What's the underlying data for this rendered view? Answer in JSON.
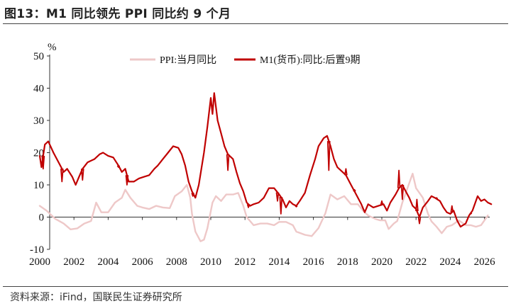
{
  "figure": {
    "title": "图13：M1 同比领先 PPI 同比约 9 个月",
    "source": "资料来源：iFind，国联民生证券研究所"
  },
  "colors": {
    "ppi": "#eec8c8",
    "m1": "#c00000",
    "axis": "#333333"
  },
  "chart_data": {
    "type": "line",
    "ylabel": "%",
    "ylim": [
      -10,
      50
    ],
    "yticks": [
      -10,
      0,
      10,
      20,
      30,
      40,
      50
    ],
    "xlim": [
      2000,
      2027
    ],
    "xticks": [
      2000,
      2002,
      2004,
      2006,
      2008,
      2010,
      2012,
      2014,
      2016,
      2018,
      2020,
      2022,
      2024,
      2026
    ],
    "legend_position": "top",
    "grid": false,
    "series": [
      {
        "name": "PPI:当月同比",
        "color": "#eec8c8",
        "points": [
          [
            2000.0,
            3.5
          ],
          [
            2000.4,
            2.0
          ],
          [
            2000.9,
            -0.5
          ],
          [
            2001.4,
            -2.0
          ],
          [
            2001.8,
            -3.8
          ],
          [
            2002.2,
            -3.5
          ],
          [
            2002.6,
            -2.0
          ],
          [
            2003.0,
            -1.2
          ],
          [
            2003.3,
            4.5
          ],
          [
            2003.6,
            1.5
          ],
          [
            2004.0,
            1.5
          ],
          [
            2004.4,
            4.5
          ],
          [
            2004.8,
            6.0
          ],
          [
            2005.0,
            8.5
          ],
          [
            2005.3,
            6.0
          ],
          [
            2005.7,
            3.5
          ],
          [
            2006.0,
            3.0
          ],
          [
            2006.4,
            2.5
          ],
          [
            2006.8,
            3.5
          ],
          [
            2007.2,
            3.0
          ],
          [
            2007.6,
            2.8
          ],
          [
            2007.9,
            6.5
          ],
          [
            2008.3,
            8.0
          ],
          [
            2008.6,
            10.0
          ],
          [
            2008.8,
            6.0
          ],
          [
            2008.9,
            1.0
          ],
          [
            2009.1,
            -4.5
          ],
          [
            2009.4,
            -7.5
          ],
          [
            2009.6,
            -7.0
          ],
          [
            2009.8,
            -3.5
          ],
          [
            2010.1,
            4.5
          ],
          [
            2010.3,
            6.5
          ],
          [
            2010.6,
            5.0
          ],
          [
            2010.9,
            7.0
          ],
          [
            2011.3,
            7.0
          ],
          [
            2011.6,
            7.5
          ],
          [
            2011.9,
            3.5
          ],
          [
            2012.1,
            0.0
          ],
          [
            2012.5,
            -2.5
          ],
          [
            2012.9,
            -2.0
          ],
          [
            2013.3,
            -2.0
          ],
          [
            2013.7,
            -2.5
          ],
          [
            2014.0,
            -1.5
          ],
          [
            2014.4,
            -1.5
          ],
          [
            2014.8,
            -2.5
          ],
          [
            2015.0,
            -4.5
          ],
          [
            2015.5,
            -5.5
          ],
          [
            2015.9,
            -5.9
          ],
          [
            2016.3,
            -3.4
          ],
          [
            2016.7,
            1.2
          ],
          [
            2017.0,
            7.0
          ],
          [
            2017.4,
            5.5
          ],
          [
            2017.8,
            6.5
          ],
          [
            2018.2,
            4.0
          ],
          [
            2018.6,
            4.0
          ],
          [
            2018.9,
            2.0
          ],
          [
            2019.2,
            0.5
          ],
          [
            2019.6,
            -0.5
          ],
          [
            2019.9,
            -1.0
          ],
          [
            2020.2,
            -1.0
          ],
          [
            2020.4,
            -3.7
          ],
          [
            2020.7,
            -2.0
          ],
          [
            2020.9,
            -1.2
          ],
          [
            2021.2,
            4.5
          ],
          [
            2021.5,
            9.0
          ],
          [
            2021.8,
            13.5
          ],
          [
            2022.0,
            9.0
          ],
          [
            2022.4,
            6.0
          ],
          [
            2022.7,
            1.0
          ],
          [
            2022.9,
            -1.3
          ],
          [
            2023.2,
            -3.0
          ],
          [
            2023.5,
            -5.0
          ],
          [
            2023.8,
            -3.0
          ],
          [
            2024.1,
            -2.5
          ],
          [
            2024.5,
            -1.0
          ],
          [
            2024.9,
            -2.5
          ],
          [
            2025.2,
            -2.5
          ],
          [
            2025.5,
            -3.0
          ],
          [
            2025.8,
            -2.5
          ],
          [
            2026.0,
            -1.0
          ],
          [
            2026.2,
            0.5
          ]
        ]
      },
      {
        "name": "M1(货币):同比:后置9期",
        "color": "#c00000",
        "points": [
          [
            2000.0,
            19.0
          ],
          [
            2000.1,
            15.5
          ],
          [
            2000.3,
            22.5
          ],
          [
            2000.5,
            23.5
          ],
          [
            2000.8,
            20.0
          ],
          [
            2001.1,
            17.0
          ],
          [
            2001.4,
            14.0
          ],
          [
            2001.6,
            15.0
          ],
          [
            2001.9,
            12.5
          ],
          [
            2002.1,
            10.0
          ],
          [
            2002.3,
            12.5
          ],
          [
            2002.5,
            15.0
          ],
          [
            2002.8,
            17.0
          ],
          [
            2003.2,
            18.0
          ],
          [
            2003.5,
            19.5
          ],
          [
            2003.7,
            20.0
          ],
          [
            2004.0,
            19.0
          ],
          [
            2004.3,
            18.5
          ],
          [
            2004.6,
            16.0
          ],
          [
            2004.8,
            14.0
          ],
          [
            2005.0,
            15.0
          ],
          [
            2005.2,
            11.0
          ],
          [
            2005.5,
            11.0
          ],
          [
            2005.8,
            12.0
          ],
          [
            2006.1,
            12.5
          ],
          [
            2006.4,
            13.0
          ],
          [
            2006.7,
            15.0
          ],
          [
            2006.9,
            16.0
          ],
          [
            2007.2,
            18.0
          ],
          [
            2007.5,
            20.0
          ],
          [
            2007.8,
            22.0
          ],
          [
            2008.1,
            21.5
          ],
          [
            2008.3,
            19.5
          ],
          [
            2008.5,
            16.0
          ],
          [
            2008.7,
            11.0
          ],
          [
            2008.9,
            8.0
          ],
          [
            2009.1,
            6.0
          ],
          [
            2009.3,
            10.0
          ],
          [
            2009.6,
            20.0
          ],
          [
            2009.8,
            28.0
          ],
          [
            2010.0,
            37.0
          ],
          [
            2010.1,
            32.0
          ],
          [
            2010.2,
            38.5
          ],
          [
            2010.4,
            30.0
          ],
          [
            2010.6,
            26.0
          ],
          [
            2010.8,
            22.0
          ],
          [
            2011.0,
            19.5
          ],
          [
            2011.3,
            18.0
          ],
          [
            2011.5,
            14.0
          ],
          [
            2011.7,
            10.5
          ],
          [
            2011.9,
            8.0
          ],
          [
            2012.1,
            4.5
          ],
          [
            2012.3,
            3.5
          ],
          [
            2012.5,
            4.0
          ],
          [
            2012.8,
            4.5
          ],
          [
            2013.1,
            6.0
          ],
          [
            2013.4,
            9.0
          ],
          [
            2013.7,
            9.0
          ],
          [
            2014.0,
            7.0
          ],
          [
            2014.2,
            5.5
          ],
          [
            2014.4,
            3.0
          ],
          [
            2014.6,
            5.0
          ],
          [
            2014.8,
            4.0
          ],
          [
            2015.0,
            3.5
          ],
          [
            2015.2,
            5.0
          ],
          [
            2015.5,
            7.5
          ],
          [
            2015.8,
            13.0
          ],
          [
            2016.1,
            18.0
          ],
          [
            2016.3,
            22.0
          ],
          [
            2016.6,
            24.5
          ],
          [
            2016.8,
            25.2
          ],
          [
            2017.0,
            22.0
          ],
          [
            2017.2,
            18.0
          ],
          [
            2017.4,
            15.5
          ],
          [
            2017.7,
            14.0
          ],
          [
            2017.9,
            13.0
          ],
          [
            2018.2,
            10.0
          ],
          [
            2018.5,
            7.0
          ],
          [
            2018.8,
            4.0
          ],
          [
            2019.0,
            1.5
          ],
          [
            2019.2,
            4.0
          ],
          [
            2019.5,
            3.0
          ],
          [
            2019.8,
            3.5
          ],
          [
            2020.1,
            4.0
          ],
          [
            2020.3,
            2.0
          ],
          [
            2020.5,
            4.5
          ],
          [
            2020.8,
            7.0
          ],
          [
            2021.0,
            9.0
          ],
          [
            2021.2,
            10.0
          ],
          [
            2021.4,
            8.0
          ],
          [
            2021.6,
            6.0
          ],
          [
            2021.8,
            3.5
          ],
          [
            2022.0,
            2.5
          ],
          [
            2022.2,
            0.0
          ],
          [
            2022.4,
            3.0
          ],
          [
            2022.7,
            5.0
          ],
          [
            2022.9,
            6.5
          ],
          [
            2023.1,
            6.0
          ],
          [
            2023.4,
            5.0
          ],
          [
            2023.6,
            3.0
          ],
          [
            2023.8,
            1.5
          ],
          [
            2024.0,
            1.0
          ],
          [
            2024.2,
            2.0
          ],
          [
            2024.4,
            -1.0
          ],
          [
            2024.6,
            -3.0
          ],
          [
            2024.9,
            -2.0
          ],
          [
            2025.1,
            0.5
          ],
          [
            2025.3,
            2.0
          ],
          [
            2025.6,
            6.5
          ],
          [
            2025.8,
            5.0
          ],
          [
            2026.0,
            5.5
          ],
          [
            2026.2,
            4.5
          ],
          [
            2026.4,
            4.0
          ]
        ],
        "spikes": [
          [
            2000.2,
            15.0
          ],
          [
            2001.3,
            11.0
          ],
          [
            2002.5,
            11.5
          ],
          [
            2004.6,
            15.5
          ],
          [
            2005.1,
            10.0
          ],
          [
            2008.95,
            6.5
          ],
          [
            2011.0,
            14.5
          ],
          [
            2012.2,
            3.0
          ],
          [
            2013.9,
            5.0
          ],
          [
            2014.1,
            1.0
          ],
          [
            2015.0,
            3.2
          ],
          [
            2016.9,
            14.5
          ],
          [
            2017.9,
            15.0
          ],
          [
            2018.4,
            8.5
          ],
          [
            2020.0,
            5.0
          ],
          [
            2021.0,
            14.5
          ],
          [
            2021.2,
            5.5
          ],
          [
            2022.05,
            5.5
          ],
          [
            2022.2,
            -2.0
          ],
          [
            2023.2,
            6.0
          ],
          [
            2024.1,
            3.5
          ],
          [
            2025.2,
            1.0
          ]
        ]
      }
    ]
  }
}
